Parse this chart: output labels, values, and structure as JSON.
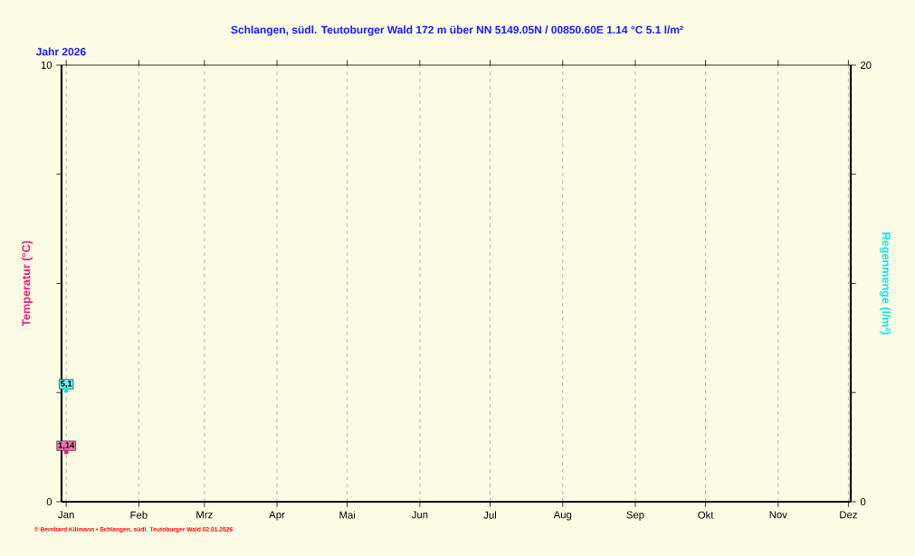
{
  "chart_data": {
    "type": "scatter",
    "title": "Schlangen,  südl. Teutoburger Wald      172 m über NN      5149.05N / 00850.60E      1.14 °C    5.1 l/m²",
    "annotations": [
      "Jahr  2026",
      "© Bernhard Kilimann  •  Schlangen, südl. Teutoburger Wald  02.01.2026"
    ],
    "ylabel": "Temperatur  (°C)",
    "y2label": "Regenmenge  (l/m²)",
    "xlim": [
      "2025-12-30",
      "2026-12-02"
    ],
    "xticks": [
      {
        "value": "2026-01-01",
        "label": "Jan"
      },
      {
        "value": "2026-02-01",
        "label": "Feb"
      },
      {
        "value": "2026-03-01",
        "label": "Mrz"
      },
      {
        "value": "2026-04-01",
        "label": "Apr"
      },
      {
        "value": "2026-05-01",
        "label": "Mai"
      },
      {
        "value": "2026-06-01",
        "label": "Jun"
      },
      {
        "value": "2026-07-01",
        "label": "Jul"
      },
      {
        "value": "2026-08-01",
        "label": "Aug"
      },
      {
        "value": "2026-09-01",
        "label": "Sep"
      },
      {
        "value": "2026-10-01",
        "label": "Okt"
      },
      {
        "value": "2026-11-01",
        "label": "Nov"
      },
      {
        "value": "2026-12-01",
        "label": "Dez"
      }
    ],
    "ylim": [
      0,
      10
    ],
    "yticks": [
      0,
      {
        "value": 2.5,
        "label": null
      },
      {
        "value": 5,
        "label": null
      },
      {
        "value": 7.5,
        "label": null
      },
      10
    ],
    "y2lim": [
      0,
      20
    ],
    "y2ticks": [
      0,
      {
        "value": 5,
        "label": null
      },
      {
        "value": 10,
        "label": null
      },
      {
        "value": 15,
        "label": null
      },
      20
    ],
    "grid": "x",
    "marker": "square",
    "series": [
      {
        "color": "#f0147a",
        "x": [
          "2026-01-01"
        ],
        "values": [
          1.14
        ],
        "value_labels": [
          "1,14"
        ]
      },
      {
        "color": "#00e8f0",
        "x": [
          "2026-01-01"
        ],
        "values": [
          5.1
        ],
        "value_labels": [
          "5,1"
        ],
        "axis": "y2"
      }
    ]
  }
}
